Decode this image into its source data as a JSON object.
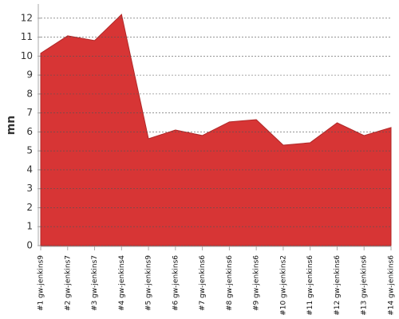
{
  "chart_data": {
    "type": "area",
    "y_label": "mn",
    "categories": [
      "#1 gw-jenkins9",
      "#2 gw-jenkins7",
      "#3 gw-jenkins7",
      "#4 gw-jenkins4",
      "#5 gw-jenkins9",
      "#6 gw-jenkins6",
      "#7 gw-jenkins6",
      "#8 gw-jenkins6",
      "#9 gw-jenkins6",
      "#10 gw-jenkins2",
      "#11 gw-jenkins6",
      "#12 gw-jenkins6",
      "#13 gw-jenkins6",
      "#14 gw-jenkins6"
    ],
    "values": [
      10.15,
      11.07,
      10.82,
      12.2,
      5.64,
      6.1,
      5.81,
      6.53,
      6.65,
      5.3,
      5.43,
      6.48,
      5.81,
      6.23
    ],
    "color": "#d73535",
    "ylim": [
      0,
      12.75
    ],
    "yticks": [
      0,
      1,
      2,
      3,
      4,
      5,
      6,
      7,
      8,
      9,
      10,
      11,
      12
    ],
    "grid": true
  }
}
